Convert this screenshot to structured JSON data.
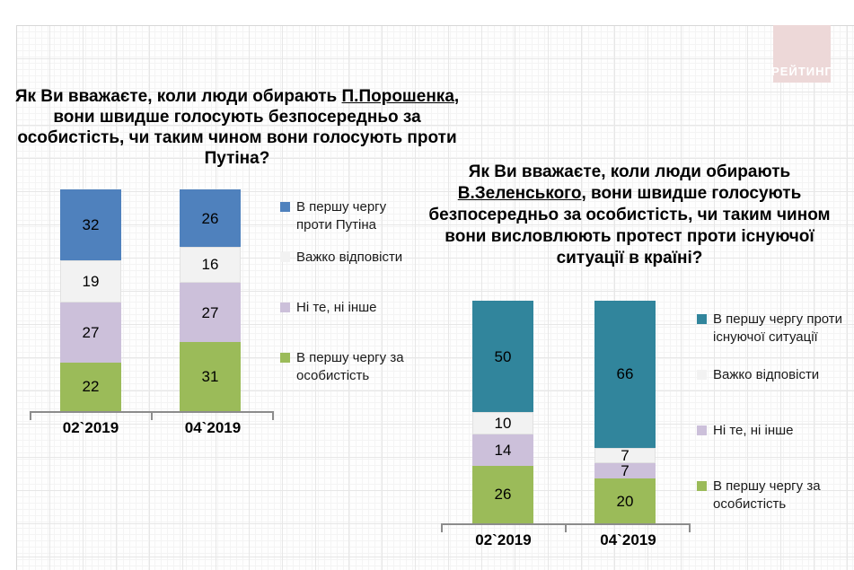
{
  "logo": {
    "text": "РЕЙТИНГ",
    "bg_color": "#edd8d8",
    "text_color": "#ffffff"
  },
  "chart_data": [
    {
      "type": "bar",
      "stacked": true,
      "title": {
        "before": "Як Ви вважаєте, коли люди обирають ",
        "underlined": "П.Порошенка",
        "after": ", вони швидше голосують безпосередньо за особистість, чи таким чином вони голосують проти Путіна?"
      },
      "categories": [
        "02`2019",
        "04`2019"
      ],
      "series": [
        {
          "name": "В першу чергу проти Путіна",
          "color": "#4F81BD",
          "values": [
            32,
            26
          ]
        },
        {
          "name": "Важко відповісти",
          "color": "#F2F2F2",
          "values": [
            19,
            16
          ]
        },
        {
          "name": "Ні те, ні інше",
          "color": "#CCC0DA",
          "values": [
            27,
            27
          ]
        },
        {
          "name": "В першу чергу за особистість",
          "color": "#9BBB59",
          "values": [
            22,
            31
          ]
        }
      ],
      "xlabel": "",
      "ylabel": "",
      "ylim": [
        0,
        100
      ],
      "grid": false,
      "value_labels": true,
      "legend_position": "right",
      "stack_top_to_bottom": true
    },
    {
      "type": "bar",
      "stacked": true,
      "title": {
        "before": "Як Ви вважаєте, коли люди обирають ",
        "underlined": "В.Зеленського",
        "after": ", вони швидше голосують безпосередньо за особистість, чи таким чином вони висловлюють протест проти існуючої ситуації в країні?"
      },
      "categories": [
        "02`2019",
        "04`2019"
      ],
      "series": [
        {
          "name": "В першу чергу проти існуючої ситуації",
          "color": "#31859C",
          "values": [
            50,
            66
          ]
        },
        {
          "name": "Важко відповісти",
          "color": "#F2F2F2",
          "values": [
            10,
            7
          ]
        },
        {
          "name": "Ні те, ні інше",
          "color": "#CCC0DA",
          "values": [
            14,
            7
          ]
        },
        {
          "name": "В першу чергу за особистість",
          "color": "#9BBB59",
          "values": [
            26,
            20
          ]
        }
      ],
      "xlabel": "",
      "ylabel": "",
      "ylim": [
        0,
        100
      ],
      "grid": false,
      "value_labels": true,
      "legend_position": "right",
      "stack_top_to_bottom": true
    }
  ]
}
